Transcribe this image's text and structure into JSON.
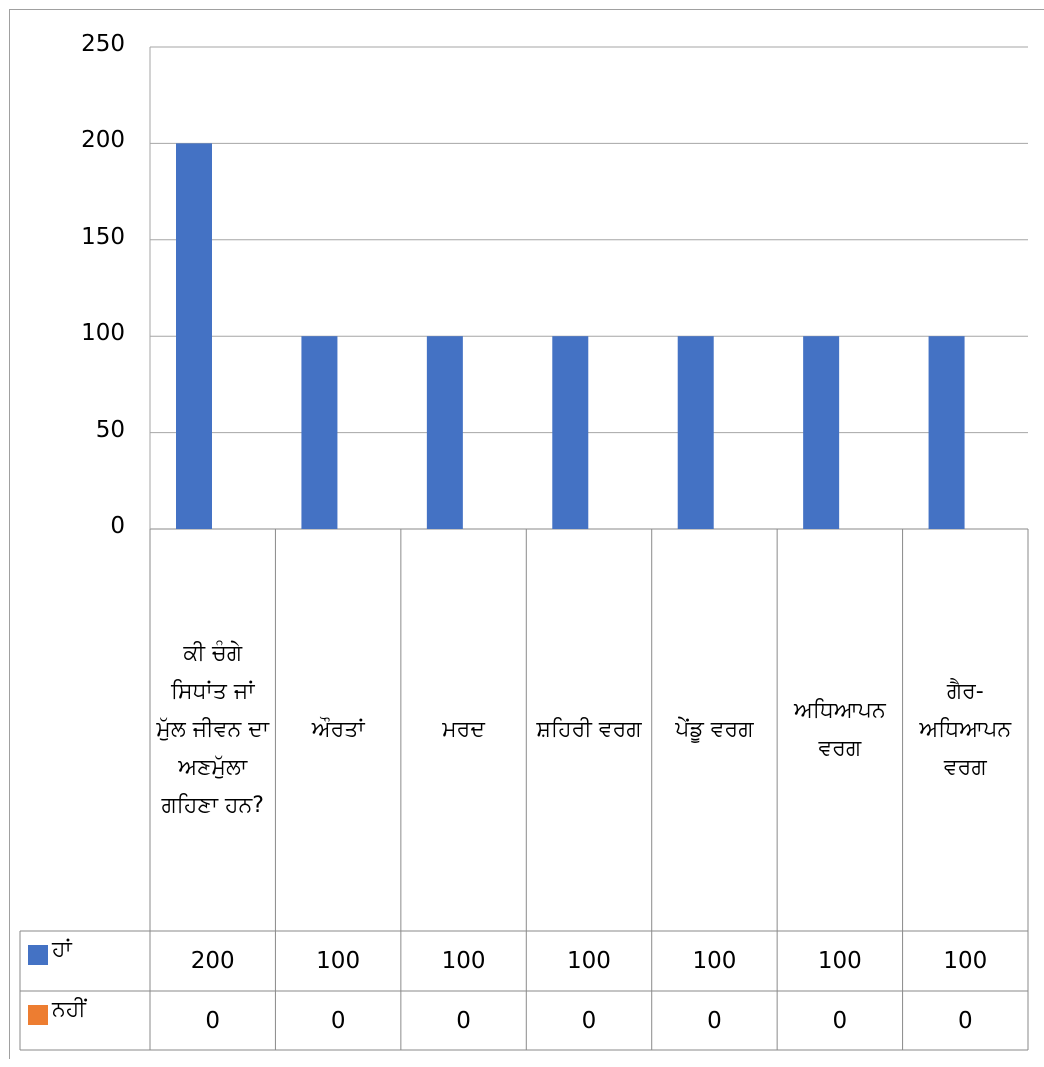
{
  "chart_data": {
    "type": "bar",
    "title": "",
    "xlabel": "",
    "ylabel": "",
    "ylim": [
      0,
      250
    ],
    "yticks": [
      0,
      50,
      100,
      150,
      200,
      250
    ],
    "grid": true,
    "legend": "data-table",
    "categories": [
      "ਕੀ ਚੰਗੇ ਸਿਧਾਂਤ ਜਾਂ ਮੁੱਲ ਜੀਵਨ ਦਾ ਅਣਮੁੱਲਾ ਗਹਿਣਾ ਹਨ?",
      "ਔਰਤਾਂ",
      "ਮਰਦ",
      "ਸ਼ਹਿਰੀ ਵਰਗ",
      "ਪੇਂਡੂ ਵਰਗ",
      "ਅਧਿਆਪਨ ਵਰਗ",
      "ਗੈਰ-ਅਧਿਆਪਨ ਵਰਗ"
    ],
    "series": [
      {
        "name": "ਹਾਂ",
        "color": "#4472c4",
        "values": [
          200,
          100,
          100,
          100,
          100,
          100,
          100
        ]
      },
      {
        "name": "ਨਹੀਂ",
        "color": "#ed7d31",
        "values": [
          0,
          0,
          0,
          0,
          0,
          0,
          0
        ]
      }
    ]
  }
}
